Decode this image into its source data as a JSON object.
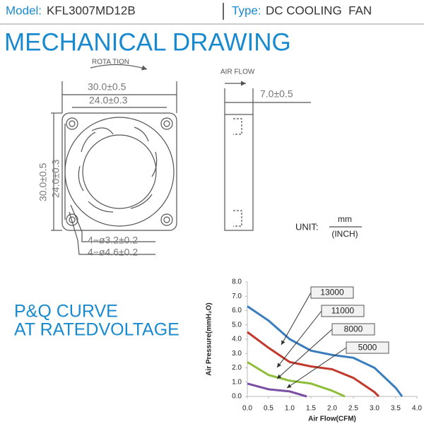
{
  "header": {
    "model_label": "Model:",
    "model": "KFL3007MD12B",
    "type_label": "Type:",
    "type": "DC COOLING  FAN"
  },
  "drawing": {
    "title": "MECHANICAL DRAWING",
    "rotation": "ROTA TION",
    "air_flow": "AIR FLOW",
    "outer_size": "30.0±0.5",
    "hole_pitch": "24.0±0.3",
    "thickness": "7.0±0.5",
    "hole_small": "4−ø3.2±0.2",
    "hole_large": "4−ø4.6±0.2",
    "unit_label": "UNIT:",
    "unit_top": "mm",
    "unit_bottom": "(INCH)"
  },
  "pq_title": [
    "P&Q CURVE",
    "AT RATEDVOLTAGE"
  ],
  "chart_data": {
    "type": "line",
    "xlabel": "Air Flow(CFM)",
    "ylabel": "Air Pressure(mmH₂O)",
    "xlim": [
      0,
      4
    ],
    "ylim": [
      0,
      8
    ],
    "xticks": [
      {
        "value": 0,
        "label": "0.0"
      },
      {
        "value": 0.5,
        "label": "0.5"
      },
      {
        "value": 1,
        "label": "1.0"
      },
      {
        "value": 1.5,
        "label": "1.5"
      },
      {
        "value": 2,
        "label": "2.0"
      },
      {
        "value": 2.5,
        "label": "2.5"
      },
      {
        "value": 3,
        "label": "3.0"
      },
      {
        "value": 3.5,
        "label": "3.5"
      },
      {
        "value": 4,
        "label": "4.0"
      }
    ],
    "yticks": [
      {
        "value": 0,
        "label": "0.0"
      },
      {
        "value": 1,
        "label": "1.0"
      },
      {
        "value": 2,
        "label": "2.0"
      },
      {
        "value": 3,
        "label": "3.0"
      },
      {
        "value": 4,
        "label": "4.0"
      },
      {
        "value": 5,
        "label": "5.0"
      },
      {
        "value": 6,
        "label": "6.0"
      },
      {
        "value": 7,
        "label": "7.0"
      },
      {
        "value": 8,
        "label": "8.0"
      }
    ],
    "series": [
      {
        "name": "13000",
        "color": "#3a7dbf",
        "x": [
          0,
          0.5,
          1.0,
          1.5,
          2.0,
          2.5,
          3.0,
          3.5,
          3.65
        ],
        "values": [
          6.3,
          5.3,
          4.0,
          3.2,
          2.9,
          2.7,
          2.0,
          0.6,
          0
        ]
      },
      {
        "name": "11000",
        "color": "#c0392b",
        "x": [
          0,
          0.5,
          1.0,
          1.5,
          2.0,
          2.5,
          3.0,
          3.1
        ],
        "values": [
          4.5,
          3.4,
          2.4,
          2.1,
          1.9,
          1.3,
          0.3,
          0
        ]
      },
      {
        "name": "8000",
        "color": "#8fbf3a",
        "x": [
          0,
          0.5,
          1.0,
          1.5,
          2.0,
          2.3
        ],
        "values": [
          2.4,
          1.5,
          1.1,
          0.9,
          0.4,
          0
        ]
      },
      {
        "name": "5000",
        "color": "#7b4fa6",
        "x": [
          0,
          0.5,
          1.0,
          1.4
        ],
        "values": [
          0.9,
          0.5,
          0.35,
          0
        ]
      }
    ]
  }
}
